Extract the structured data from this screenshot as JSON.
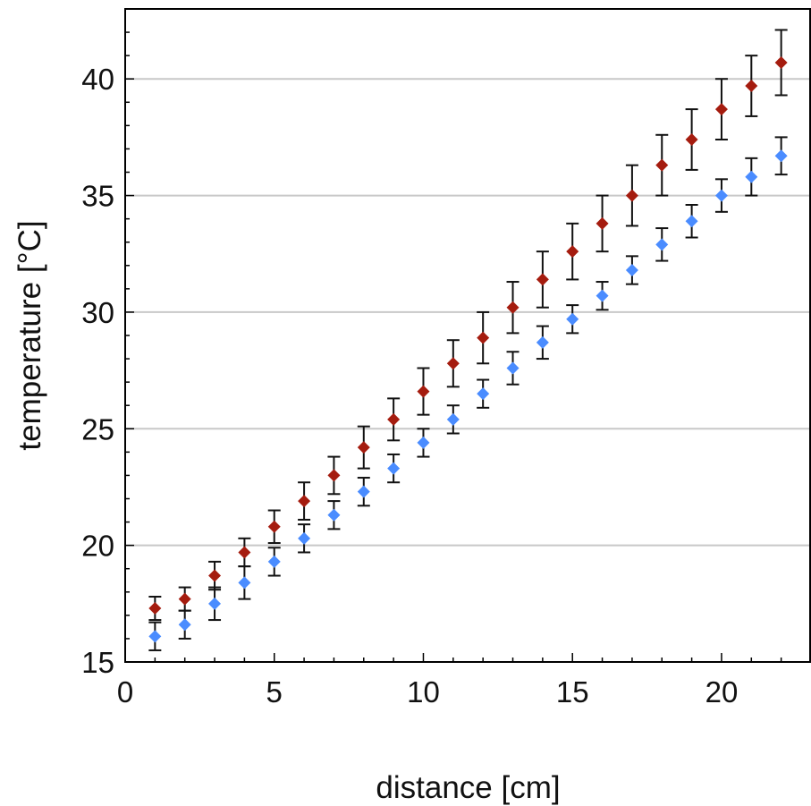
{
  "chart_data": {
    "type": "scatter",
    "title": "",
    "xlabel": "distance [cm]",
    "ylabel": "temperature [°C]",
    "xlim": [
      0,
      23
    ],
    "ylim": [
      15,
      43
    ],
    "xticks": [
      0,
      5,
      10,
      15,
      20
    ],
    "yticks": [
      15,
      20,
      25,
      30,
      35,
      40
    ],
    "xtick_labels": [
      "0",
      "5",
      "10",
      "15",
      "20"
    ],
    "ytick_labels": [
      "15",
      "20",
      "25",
      "30",
      "35",
      "40"
    ],
    "horizontal_gridlines": true,
    "error_bars": true,
    "marker": "diamond",
    "x": [
      1,
      2,
      3,
      4,
      5,
      6,
      7,
      8,
      9,
      10,
      11,
      12,
      13,
      14,
      15,
      16,
      17,
      18,
      19,
      20,
      21,
      22
    ],
    "series": [
      {
        "color": "#a51c0f",
        "values": [
          17.3,
          17.7,
          18.7,
          19.7,
          20.8,
          21.9,
          23.0,
          24.2,
          25.4,
          26.6,
          27.8,
          28.9,
          30.2,
          31.4,
          32.6,
          33.8,
          35.0,
          36.3,
          37.4,
          38.7,
          39.7,
          40.7
        ],
        "errors": [
          0.5,
          0.5,
          0.6,
          0.6,
          0.7,
          0.8,
          0.8,
          0.9,
          0.9,
          1.0,
          1.0,
          1.1,
          1.1,
          1.2,
          1.2,
          1.2,
          1.3,
          1.3,
          1.3,
          1.3,
          1.3,
          1.4
        ]
      },
      {
        "color": "#4a8cff",
        "values": [
          16.1,
          16.6,
          17.5,
          18.4,
          19.3,
          20.3,
          21.3,
          22.3,
          23.3,
          24.4,
          25.4,
          26.5,
          27.6,
          28.7,
          29.7,
          30.7,
          31.8,
          32.9,
          33.9,
          35.0,
          35.8,
          36.7
        ],
        "errors": [
          0.6,
          0.6,
          0.7,
          0.7,
          0.6,
          0.6,
          0.6,
          0.6,
          0.6,
          0.6,
          0.6,
          0.6,
          0.7,
          0.7,
          0.6,
          0.6,
          0.6,
          0.7,
          0.7,
          0.7,
          0.8,
          0.8
        ]
      }
    ]
  }
}
